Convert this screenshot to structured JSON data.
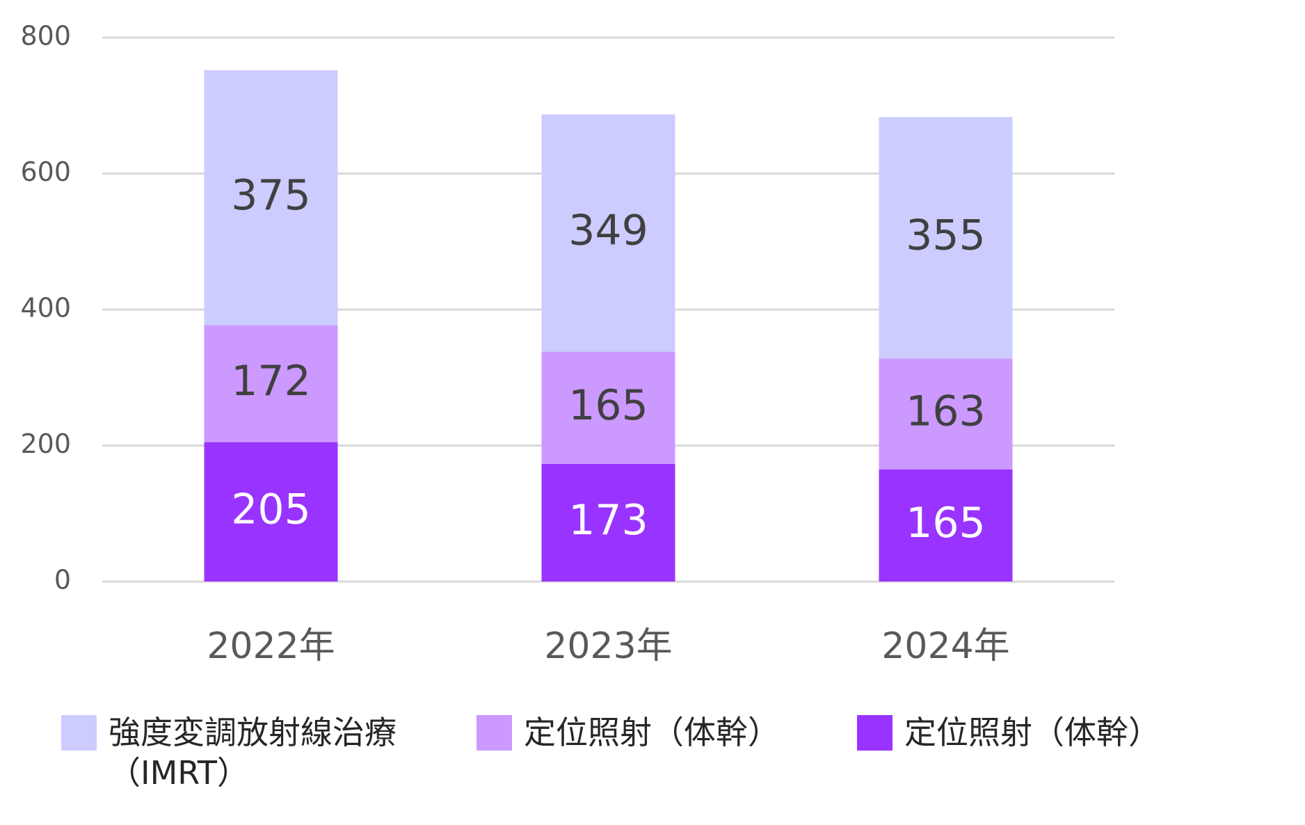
{
  "chart_data": {
    "type": "stacked_bar",
    "categories": [
      "2022年",
      "2023年",
      "2024年"
    ],
    "series": [
      {
        "name": "定位照射（体幹）",
        "color": "#9933ff",
        "label_color": "#ffffff",
        "values": [
          205,
          173,
          165
        ]
      },
      {
        "name": "定位照射（体幹）",
        "color": "#cc99ff",
        "label_color": "#404040",
        "values": [
          172,
          165,
          163
        ]
      },
      {
        "name": "強度変調放射線治療（IMRT）",
        "color": "#ccccff",
        "label_color": "#404040",
        "values": [
          375,
          349,
          355
        ]
      }
    ],
    "ylim": [
      0,
      800
    ],
    "yticks": [
      0,
      200,
      400,
      600,
      800
    ],
    "grid": true,
    "legend": "bottom"
  }
}
